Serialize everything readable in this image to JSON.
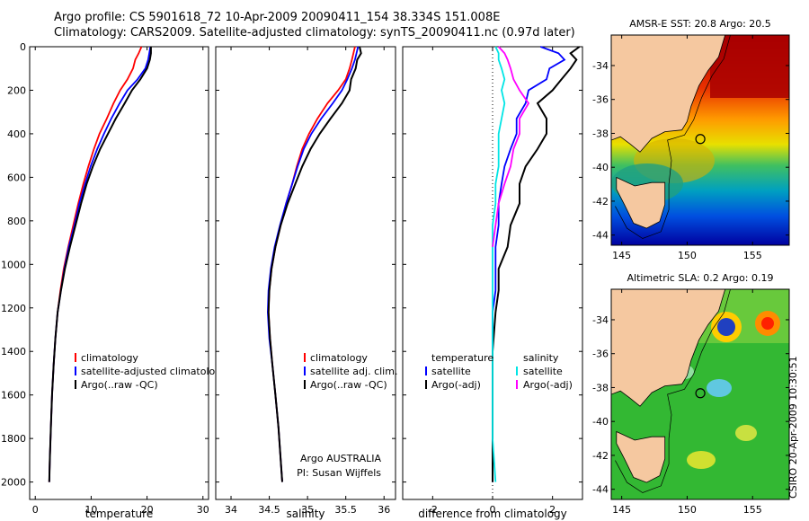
{
  "header": {
    "line1": "Argo profile: CS 5901618_72 10-Apr-2009 20090411_154 38.334S 151.008E",
    "line2": "Climatology: CARS2009. Satellite-adjusted climatology: synTS_20090411.nc (0.97d later)"
  },
  "stamp": "CSIRO  20-Apr-2009 10:30:51",
  "chart_data": [
    {
      "type": "line",
      "xlabel": "temperature",
      "xlim": [
        -1,
        31
      ],
      "ylim": [
        0,
        2080
      ],
      "y_reversed": true,
      "yticks": [
        0,
        200,
        400,
        600,
        800,
        1000,
        1200,
        1400,
        1600,
        1800,
        2000
      ],
      "xticks": [
        0,
        10,
        20,
        30
      ],
      "series": [
        {
          "name": "climatology",
          "color": "#ff0000",
          "values": [
            [
              19.0,
              0
            ],
            [
              18.5,
              30
            ],
            [
              17.9,
              60
            ],
            [
              17.5,
              100
            ],
            [
              16.5,
              150
            ],
            [
              15.2,
              200
            ],
            [
              14.0,
              260
            ],
            [
              12.8,
              330
            ],
            [
              11.5,
              400
            ],
            [
              10.5,
              470
            ],
            [
              9.5,
              550
            ],
            [
              8.6,
              630
            ],
            [
              7.7,
              720
            ],
            [
              6.8,
              820
            ],
            [
              5.9,
              920
            ],
            [
              5.1,
              1020
            ],
            [
              4.5,
              1120
            ],
            [
              4.0,
              1220
            ],
            [
              3.6,
              1340
            ],
            [
              3.3,
              1460
            ],
            [
              3.0,
              1600
            ],
            [
              2.8,
              1750
            ],
            [
              2.6,
              1900
            ],
            [
              2.5,
              2000
            ]
          ]
        },
        {
          "name": "satellite-adjusted climatology",
          "color": "#0000ff",
          "values": [
            [
              20.6,
              0
            ],
            [
              20.4,
              30
            ],
            [
              20.2,
              60
            ],
            [
              19.7,
              100
            ],
            [
              18.3,
              150
            ],
            [
              16.5,
              200
            ],
            [
              15.1,
              260
            ],
            [
              13.6,
              330
            ],
            [
              12.3,
              400
            ],
            [
              11.1,
              470
            ],
            [
              9.9,
              550
            ],
            [
              8.9,
              630
            ],
            [
              7.9,
              720
            ],
            [
              7.0,
              820
            ],
            [
              6.0,
              920
            ],
            [
              5.2,
              1020
            ],
            [
              4.6,
              1120
            ],
            [
              4.0,
              1220
            ],
            [
              3.6,
              1340
            ],
            [
              3.3,
              1460
            ],
            [
              3.0,
              1600
            ],
            [
              2.8,
              1750
            ],
            [
              2.6,
              1900
            ],
            [
              2.5,
              2000
            ]
          ]
        },
        {
          "name": "Argo(..raw -QC)",
          "color": "#000000",
          "values": [
            [
              20.7,
              0
            ],
            [
              20.7,
              30
            ],
            [
              20.5,
              60
            ],
            [
              20.0,
              100
            ],
            [
              18.8,
              150
            ],
            [
              17.3,
              200
            ],
            [
              16.0,
              260
            ],
            [
              14.4,
              330
            ],
            [
              13.0,
              400
            ],
            [
              11.6,
              470
            ],
            [
              10.3,
              550
            ],
            [
              9.2,
              630
            ],
            [
              8.2,
              720
            ],
            [
              7.2,
              820
            ],
            [
              6.2,
              920
            ],
            [
              5.3,
              1020
            ],
            [
              4.6,
              1120
            ],
            [
              4.0,
              1220
            ],
            [
              3.6,
              1340
            ],
            [
              3.3,
              1460
            ],
            [
              3.0,
              1600
            ],
            [
              2.8,
              1750
            ],
            [
              2.6,
              1900
            ],
            [
              2.5,
              2000
            ]
          ]
        }
      ]
    },
    {
      "type": "line",
      "xlabel": "salinity",
      "xlim": [
        33.8,
        36.15
      ],
      "ylim": [
        0,
        2080
      ],
      "y_reversed": true,
      "xticks": [
        34,
        34.5,
        35,
        35.5,
        36
      ],
      "annotations": [
        "Argo AUSTRALIA",
        "PI: Susan Wijffels"
      ],
      "series": [
        {
          "name": "climatology",
          "color": "#ff0000",
          "values": [
            [
              35.62,
              0
            ],
            [
              35.6,
              30
            ],
            [
              35.58,
              60
            ],
            [
              35.55,
              100
            ],
            [
              35.5,
              150
            ],
            [
              35.4,
              200
            ],
            [
              35.26,
              260
            ],
            [
              35.13,
              330
            ],
            [
              35.02,
              400
            ],
            [
              34.93,
              470
            ],
            [
              34.86,
              550
            ],
            [
              34.8,
              630
            ],
            [
              34.72,
              720
            ],
            [
              34.65,
              820
            ],
            [
              34.58,
              920
            ],
            [
              34.53,
              1020
            ],
            [
              34.5,
              1120
            ],
            [
              34.49,
              1220
            ],
            [
              34.51,
              1340
            ],
            [
              34.54,
              1460
            ],
            [
              34.58,
              1600
            ],
            [
              34.62,
              1750
            ],
            [
              34.65,
              1900
            ],
            [
              34.67,
              2000
            ]
          ]
        },
        {
          "name": "satellite adj. clim.",
          "color": "#0000ff",
          "values": [
            [
              35.66,
              0
            ],
            [
              35.64,
              30
            ],
            [
              35.62,
              60
            ],
            [
              35.58,
              100
            ],
            [
              35.52,
              150
            ],
            [
              35.45,
              200
            ],
            [
              35.33,
              260
            ],
            [
              35.18,
              330
            ],
            [
              35.05,
              400
            ],
            [
              34.95,
              470
            ],
            [
              34.87,
              550
            ],
            [
              34.8,
              630
            ],
            [
              34.72,
              720
            ],
            [
              34.64,
              820
            ],
            [
              34.57,
              920
            ],
            [
              34.52,
              1020
            ],
            [
              34.49,
              1120
            ],
            [
              34.48,
              1220
            ],
            [
              34.5,
              1340
            ],
            [
              34.54,
              1460
            ],
            [
              34.58,
              1600
            ],
            [
              34.62,
              1750
            ],
            [
              34.65,
              1900
            ],
            [
              34.67,
              2000
            ]
          ]
        },
        {
          "name": "Argo(..raw -QC)",
          "color": "#000000",
          "values": [
            [
              35.68,
              0
            ],
            [
              35.7,
              30
            ],
            [
              35.65,
              60
            ],
            [
              35.63,
              100
            ],
            [
              35.57,
              150
            ],
            [
              35.55,
              200
            ],
            [
              35.45,
              260
            ],
            [
              35.3,
              330
            ],
            [
              35.16,
              400
            ],
            [
              35.04,
              470
            ],
            [
              34.93,
              550
            ],
            [
              34.84,
              630
            ],
            [
              34.74,
              720
            ],
            [
              34.65,
              820
            ],
            [
              34.58,
              920
            ],
            [
              34.53,
              1020
            ],
            [
              34.5,
              1120
            ],
            [
              34.49,
              1220
            ],
            [
              34.51,
              1340
            ],
            [
              34.54,
              1460
            ],
            [
              34.58,
              1600
            ],
            [
              34.62,
              1750
            ],
            [
              34.65,
              1900
            ],
            [
              34.67,
              2000
            ]
          ]
        }
      ]
    },
    {
      "type": "line",
      "xlabel": "difference from climatology",
      "xlim": [
        -3,
        3
      ],
      "ylim": [
        0,
        2080
      ],
      "y_reversed": true,
      "xticks": [
        -2,
        0,
        2
      ],
      "legend_titles": [
        "temperature",
        "salinity"
      ],
      "series": [
        {
          "name": "satellite",
          "group": "temperature",
          "color": "#0000ff",
          "values": [
            [
              1.6,
              0
            ],
            [
              2.2,
              30
            ],
            [
              2.4,
              60
            ],
            [
              1.9,
              100
            ],
            [
              1.8,
              150
            ],
            [
              1.2,
              200
            ],
            [
              1.1,
              260
            ],
            [
              0.8,
              330
            ],
            [
              0.8,
              400
            ],
            [
              0.6,
              470
            ],
            [
              0.4,
              550
            ],
            [
              0.3,
              630
            ],
            [
              0.2,
              720
            ],
            [
              0.2,
              820
            ],
            [
              0.1,
              920
            ],
            [
              0.1,
              1020
            ],
            [
              0.1,
              1120
            ],
            [
              0.0,
              1220
            ],
            [
              0.0,
              1400
            ],
            [
              0.0,
              1600
            ],
            [
              0.0,
              1800
            ],
            [
              0.0,
              2000
            ]
          ]
        },
        {
          "name": "Argo(-adj)",
          "group": "temperature",
          "color": "#000000",
          "values": [
            [
              2.9,
              0
            ],
            [
              2.6,
              30
            ],
            [
              2.8,
              60
            ],
            [
              2.6,
              100
            ],
            [
              2.3,
              150
            ],
            [
              2.0,
              200
            ],
            [
              1.5,
              260
            ],
            [
              1.8,
              330
            ],
            [
              1.8,
              400
            ],
            [
              1.5,
              470
            ],
            [
              1.1,
              550
            ],
            [
              0.9,
              630
            ],
            [
              0.9,
              720
            ],
            [
              0.6,
              820
            ],
            [
              0.5,
              920
            ],
            [
              0.2,
              1020
            ],
            [
              0.2,
              1120
            ],
            [
              0.1,
              1220
            ],
            [
              0.0,
              1400
            ],
            [
              0.0,
              1600
            ],
            [
              0.0,
              1800
            ],
            [
              0.0,
              2000
            ]
          ]
        },
        {
          "name": "satellite",
          "group": "salinity",
          "color": "#00e5e5",
          "values": [
            [
              0.1,
              0
            ],
            [
              0.2,
              30
            ],
            [
              0.2,
              60
            ],
            [
              0.3,
              100
            ],
            [
              0.4,
              150
            ],
            [
              0.3,
              200
            ],
            [
              0.4,
              260
            ],
            [
              0.3,
              330
            ],
            [
              0.2,
              400
            ],
            [
              0.2,
              470
            ],
            [
              0.2,
              550
            ],
            [
              0.1,
              630
            ],
            [
              0.1,
              720
            ],
            [
              0.0,
              820
            ],
            [
              0.0,
              920
            ],
            [
              0.0,
              1020
            ],
            [
              0.0,
              1120
            ],
            [
              0.0,
              1220
            ],
            [
              0.0,
              1400
            ],
            [
              0.0,
              1600
            ],
            [
              0.0,
              1800
            ],
            [
              0.1,
              2000
            ]
          ]
        },
        {
          "name": "Argo(-adj)",
          "group": "salinity",
          "color": "#ff00ff",
          "values": [
            [
              0.2,
              0
            ],
            [
              0.4,
              30
            ],
            [
              0.5,
              60
            ],
            [
              0.6,
              100
            ],
            [
              0.7,
              150
            ],
            [
              0.9,
              200
            ],
            [
              1.2,
              260
            ],
            [
              0.9,
              330
            ],
            [
              0.9,
              400
            ],
            [
              0.7,
              470
            ],
            [
              0.6,
              550
            ],
            [
              0.4,
              630
            ],
            [
              0.2,
              720
            ],
            [
              0.1,
              820
            ],
            [
              0.0,
              920
            ]
          ]
        }
      ]
    },
    {
      "type": "heatmap",
      "title": "AMSR-E SST: 20.8  Argo: 20.5",
      "xlim": [
        144.2,
        157.8
      ],
      "ylim": [
        -44.6,
        -32.2
      ],
      "xticks": [
        145,
        150,
        155
      ],
      "yticks": [
        -34,
        -36,
        -38,
        -40,
        -42,
        -44
      ],
      "argo_position": [
        151.008,
        -38.334
      ]
    },
    {
      "type": "heatmap",
      "title": "Altimetric SLA: 0.2  Argo: 0.19",
      "xlim": [
        144.2,
        157.8
      ],
      "ylim": [
        -44.6,
        -32.2
      ],
      "xticks": [
        145,
        150,
        155
      ],
      "yticks": [
        -34,
        -36,
        -38,
        -40,
        -42,
        -44
      ],
      "argo_position": [
        151.008,
        -38.334
      ]
    }
  ]
}
